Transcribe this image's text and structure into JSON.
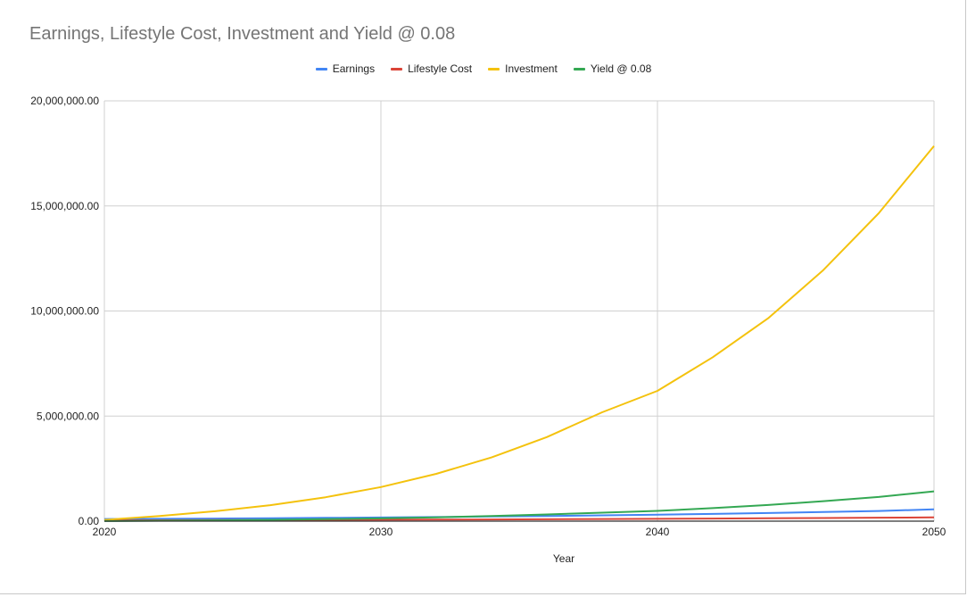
{
  "chart_data": {
    "type": "line",
    "title": "Earnings, Lifestyle Cost, Investment and Yield @ 0.08",
    "xlabel": "Year",
    "ylabel": "",
    "xlim": [
      2020,
      2050
    ],
    "ylim": [
      0,
      20000000
    ],
    "x_ticks": [
      "2020",
      "2030",
      "2040",
      "2050"
    ],
    "y_ticks": [
      "0.00",
      "5,000,000.00",
      "10,000,000.00",
      "15,000,000.00",
      "20,000,000.00"
    ],
    "grid": true,
    "legend_position": "top",
    "x": [
      2020,
      2022,
      2024,
      2026,
      2028,
      2030,
      2032,
      2034,
      2036,
      2038,
      2040,
      2042,
      2044,
      2046,
      2048,
      2050
    ],
    "series": [
      {
        "name": "Earnings",
        "color": "#4285f4",
        "values": [
          100000,
          112000,
          125000,
          140000,
          157000,
          175000,
          196000,
          220000,
          246000,
          275000,
          308000,
          345000,
          386000,
          432000,
          484000,
          560000
        ]
      },
      {
        "name": "Lifestyle Cost",
        "color": "#db4437",
        "values": [
          40000,
          44000,
          49000,
          54000,
          60000,
          66000,
          73000,
          81000,
          90000,
          100000,
          111000,
          123000,
          136000,
          150000,
          166000,
          180000
        ]
      },
      {
        "name": "Investment",
        "color": "#f4c20d",
        "values": [
          60000,
          240000,
          470000,
          760000,
          1140000,
          1620000,
          2250000,
          3030000,
          4000000,
          5180000,
          6200000,
          7800000,
          9650000,
          11950000,
          14650000,
          17850000
        ]
      },
      {
        "name": "Yield @ 0.08",
        "color": "#34a853",
        "values": [
          5000,
          20000,
          40000,
          65000,
          95000,
          130000,
          180000,
          245000,
          320000,
          405000,
          490000,
          620000,
          770000,
          950000,
          1150000,
          1420000
        ]
      }
    ]
  }
}
